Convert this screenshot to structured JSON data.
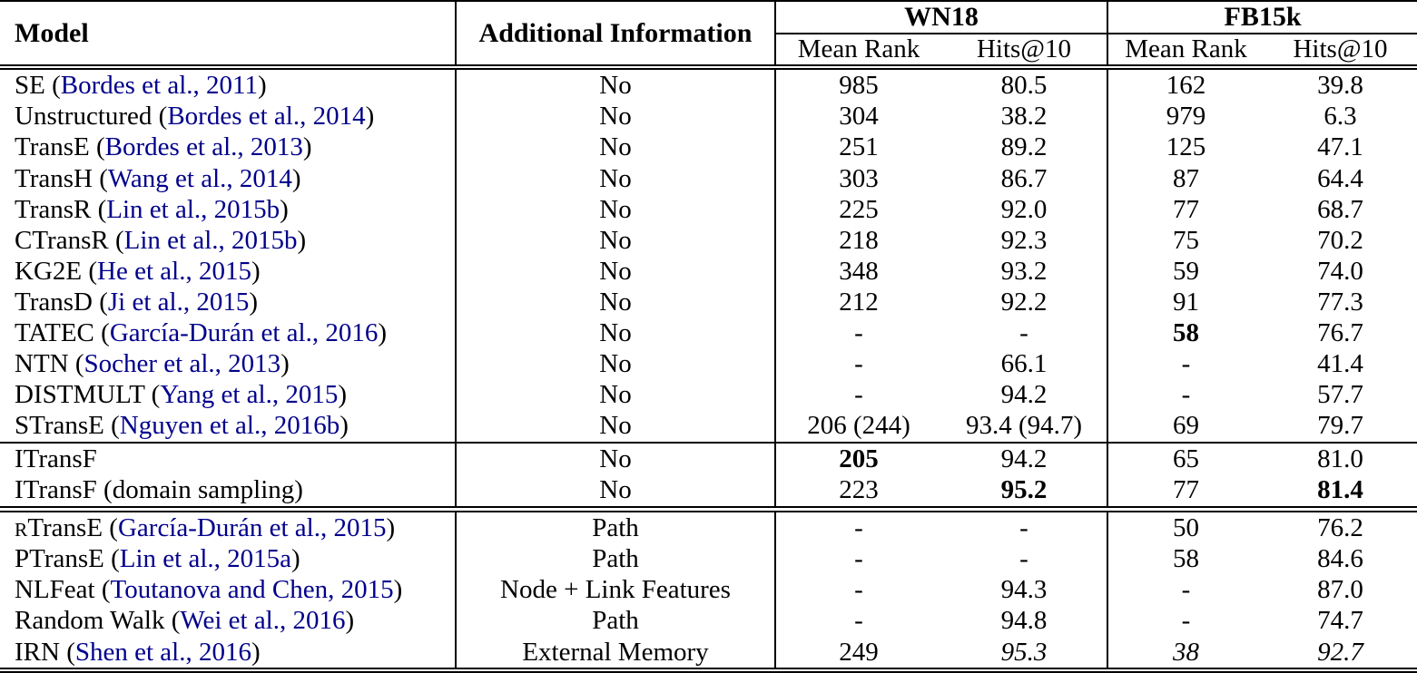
{
  "table": {
    "header": {
      "model": "Model",
      "additional_info": "Additional Information",
      "wn18": "WN18",
      "fb15k": "FB15k",
      "subheaders": [
        "Mean Rank",
        "Hits@10",
        "Mean Rank",
        "Hits@10"
      ]
    },
    "citation_color": "#00008B",
    "blocks": [
      {
        "name": "baseline-models",
        "rows": [
          {
            "name": "SE",
            "citation": "Bordes et al., 2011",
            "info": "No",
            "values": [
              {
                "v": "985"
              },
              {
                "v": "80.5"
              },
              {
                "v": "162"
              },
              {
                "v": "39.8"
              }
            ]
          },
          {
            "name": "Unstructured",
            "citation": "Bordes et al., 2014",
            "info": "No",
            "values": [
              {
                "v": "304"
              },
              {
                "v": "38.2"
              },
              {
                "v": "979"
              },
              {
                "v": "6.3"
              }
            ]
          },
          {
            "name": "TransE",
            "citation": "Bordes et al., 2013",
            "info": "No",
            "values": [
              {
                "v": "251"
              },
              {
                "v": "89.2"
              },
              {
                "v": "125"
              },
              {
                "v": "47.1"
              }
            ]
          },
          {
            "name": "TransH",
            "citation": "Wang et al., 2014",
            "info": "No",
            "values": [
              {
                "v": "303"
              },
              {
                "v": "86.7"
              },
              {
                "v": "87"
              },
              {
                "v": "64.4"
              }
            ]
          },
          {
            "name": "TransR",
            "citation": "Lin et al., 2015b",
            "info": "No",
            "values": [
              {
                "v": "225"
              },
              {
                "v": "92.0"
              },
              {
                "v": "77"
              },
              {
                "v": "68.7"
              }
            ]
          },
          {
            "name": "CTransR",
            "citation": "Lin et al., 2015b",
            "info": "No",
            "values": [
              {
                "v": "218"
              },
              {
                "v": "92.3"
              },
              {
                "v": "75"
              },
              {
                "v": "70.2"
              }
            ]
          },
          {
            "name": "KG2E",
            "citation": "He et al., 2015",
            "info": "No",
            "values": [
              {
                "v": "348"
              },
              {
                "v": "93.2"
              },
              {
                "v": "59"
              },
              {
                "v": "74.0"
              }
            ]
          },
          {
            "name": "TransD",
            "citation": "Ji et al., 2015",
            "info": "No",
            "values": [
              {
                "v": "212"
              },
              {
                "v": "92.2"
              },
              {
                "v": "91"
              },
              {
                "v": "77.3"
              }
            ]
          },
          {
            "name": "TATEC",
            "citation": "García-Durán et al., 2016",
            "info": "No",
            "values": [
              {
                "v": "-"
              },
              {
                "v": "-"
              },
              {
                "v": "58",
                "b": true
              },
              {
                "v": "76.7"
              }
            ]
          },
          {
            "name": "NTN",
            "citation": "Socher et al., 2013",
            "info": "No",
            "values": [
              {
                "v": "-"
              },
              {
                "v": "66.1"
              },
              {
                "v": "-"
              },
              {
                "v": "41.4"
              }
            ]
          },
          {
            "name": "DISTMULT",
            "citation": "Yang et al., 2015",
            "info": "No",
            "values": [
              {
                "v": "-"
              },
              {
                "v": "94.2"
              },
              {
                "v": "-"
              },
              {
                "v": "57.7"
              }
            ]
          },
          {
            "name": "STransE",
            "citation": "Nguyen et al., 2016b",
            "info": "No",
            "values": [
              {
                "v": "206 (244)"
              },
              {
                "v": "93.4 (94.7)"
              },
              {
                "v": "69"
              },
              {
                "v": "79.7"
              }
            ]
          }
        ]
      },
      {
        "name": "itransf-models",
        "rows": [
          {
            "name": "ITransF",
            "citation": null,
            "info": "No",
            "values": [
              {
                "v": "205",
                "b": true
              },
              {
                "v": "94.2"
              },
              {
                "v": "65"
              },
              {
                "v": "81.0"
              }
            ]
          },
          {
            "name": "ITransF (domain sampling)",
            "citation": null,
            "info": "No",
            "values": [
              {
                "v": "223"
              },
              {
                "v": "95.2",
                "b": true
              },
              {
                "v": "77"
              },
              {
                "v": "81.4",
                "b": true
              }
            ]
          }
        ]
      },
      {
        "name": "additional-information-models",
        "rows": [
          {
            "sc": "R",
            "name": "TransE",
            "citation": "García-Durán et al., 2015",
            "info": "Path",
            "values": [
              {
                "v": "-"
              },
              {
                "v": "-"
              },
              {
                "v": "50"
              },
              {
                "v": "76.2"
              }
            ]
          },
          {
            "name": "PTransE",
            "citation": "Lin et al., 2015a",
            "info": "Path",
            "values": [
              {
                "v": "-"
              },
              {
                "v": "-"
              },
              {
                "v": "58"
              },
              {
                "v": "84.6"
              }
            ]
          },
          {
            "name": "NLFeat",
            "citation": "Toutanova and Chen, 2015",
            "info": "Node + Link Features",
            "values": [
              {
                "v": "-"
              },
              {
                "v": "94.3"
              },
              {
                "v": "-"
              },
              {
                "v": "87.0"
              }
            ]
          },
          {
            "name": "Random Walk",
            "citation": "Wei et al., 2016",
            "info": "Path",
            "values": [
              {
                "v": "-"
              },
              {
                "v": "94.8"
              },
              {
                "v": "-"
              },
              {
                "v": "74.7"
              }
            ]
          },
          {
            "name": "IRN",
            "citation": "Shen et al., 2016",
            "info": "External Memory",
            "values": [
              {
                "v": "249"
              },
              {
                "v": "95.3",
                "i": true
              },
              {
                "v": "38",
                "i": true
              },
              {
                "v": "92.7",
                "i": true
              }
            ]
          }
        ]
      }
    ]
  }
}
